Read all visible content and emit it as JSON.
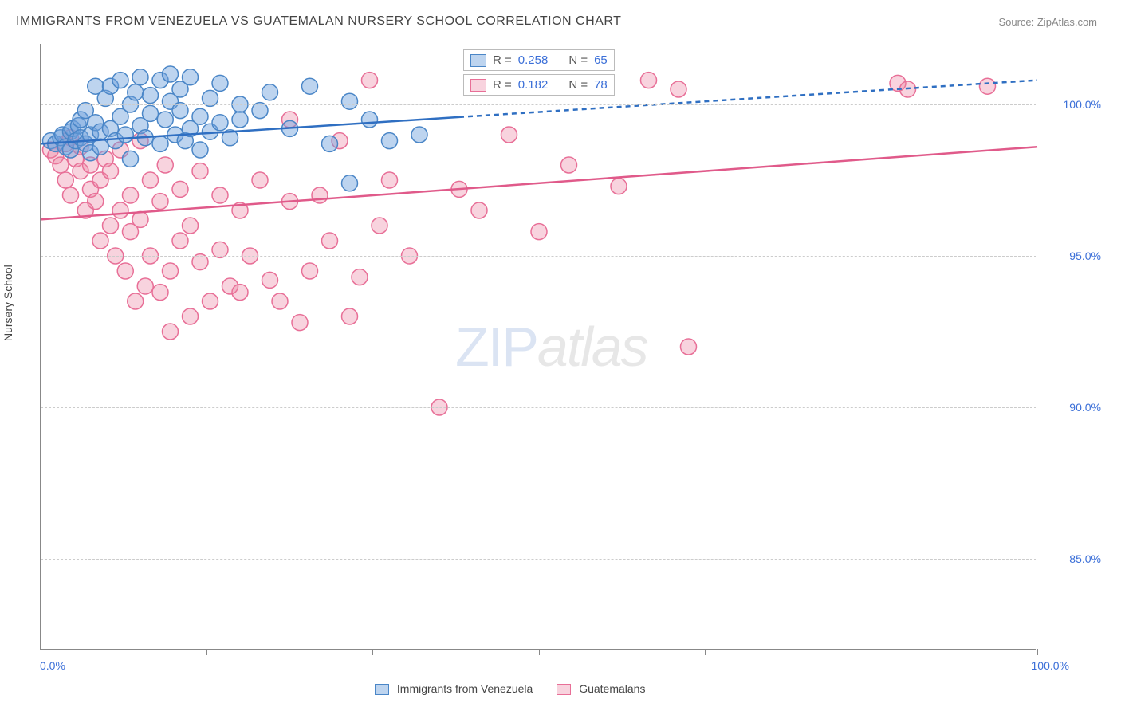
{
  "title": "IMMIGRANTS FROM VENEZUELA VS GUATEMALAN NURSERY SCHOOL CORRELATION CHART",
  "source": "Source: ZipAtlas.com",
  "ylabel": "Nursery School",
  "watermark_zip": "ZIP",
  "watermark_atlas": "atlas",
  "colors": {
    "series_a_fill": "rgba(108,160,220,0.45)",
    "series_a_stroke": "#4a86c7",
    "series_b_fill": "rgba(235,130,160,0.35)",
    "series_b_stroke": "#e86f97",
    "trend_a": "#2f6fc2",
    "trend_b": "#e05a8a",
    "axis_tick_label": "#3b6fd8",
    "grid": "#cccccc",
    "axis": "#888888",
    "text": "#444444"
  },
  "chart": {
    "type": "scatter",
    "xlim": [
      0,
      100
    ],
    "ylim": [
      82,
      102
    ],
    "yticks": [
      85,
      90,
      95,
      100
    ],
    "ytick_labels": [
      "85.0%",
      "90.0%",
      "95.0%",
      "100.0%"
    ],
    "xticks": [
      0,
      16.6,
      33.3,
      50,
      66.6,
      83.3,
      100
    ],
    "xlim_labels": {
      "min": "0.0%",
      "max": "100.0%"
    },
    "marker_radius": 10,
    "marker_stroke_width": 1.5,
    "trend_width": 2.5
  },
  "stats": {
    "a": {
      "R_label": "R =",
      "R": "0.258",
      "N_label": "N =",
      "N": "65"
    },
    "b": {
      "R_label": "R =",
      "R": "0.182",
      "N_label": "N =",
      "N": "78"
    }
  },
  "legend": {
    "a": "Immigrants from Venezuela",
    "b": "Guatemalans"
  },
  "trend_lines": {
    "a": {
      "x1": 0,
      "y1": 98.7,
      "x2": 100,
      "y2": 100.8
    },
    "b": {
      "x1": 0,
      "y1": 96.2,
      "x2": 100,
      "y2": 98.6
    }
  },
  "series_a": [
    [
      1,
      98.8
    ],
    [
      1.5,
      98.7
    ],
    [
      2,
      98.9
    ],
    [
      2.2,
      99.0
    ],
    [
      2.5,
      98.6
    ],
    [
      3,
      99.1
    ],
    [
      3,
      98.5
    ],
    [
      3.2,
      99.2
    ],
    [
      3.5,
      98.8
    ],
    [
      3.8,
      99.3
    ],
    [
      4,
      98.9
    ],
    [
      4,
      99.5
    ],
    [
      4.5,
      98.7
    ],
    [
      4.5,
      99.8
    ],
    [
      5,
      99.0
    ],
    [
      5,
      98.4
    ],
    [
      5.5,
      99.4
    ],
    [
      5.5,
      100.6
    ],
    [
      6,
      99.1
    ],
    [
      6,
      98.6
    ],
    [
      6.5,
      100.2
    ],
    [
      7,
      99.2
    ],
    [
      7,
      100.6
    ],
    [
      7.5,
      98.8
    ],
    [
      8,
      99.6
    ],
    [
      8,
      100.8
    ],
    [
      8.5,
      99.0
    ],
    [
      9,
      100.0
    ],
    [
      9,
      98.2
    ],
    [
      9.5,
      100.4
    ],
    [
      10,
      99.3
    ],
    [
      10,
      100.9
    ],
    [
      10.5,
      98.9
    ],
    [
      11,
      99.7
    ],
    [
      11,
      100.3
    ],
    [
      12,
      100.8
    ],
    [
      12,
      98.7
    ],
    [
      12.5,
      99.5
    ],
    [
      13,
      100.1
    ],
    [
      13,
      101.0
    ],
    [
      13.5,
      99.0
    ],
    [
      14,
      99.8
    ],
    [
      14,
      100.5
    ],
    [
      14.5,
      98.8
    ],
    [
      15,
      99.2
    ],
    [
      15,
      100.9
    ],
    [
      16,
      99.6
    ],
    [
      16,
      98.5
    ],
    [
      17,
      100.2
    ],
    [
      17,
      99.1
    ],
    [
      18,
      100.7
    ],
    [
      18,
      99.4
    ],
    [
      19,
      98.9
    ],
    [
      20,
      100.0
    ],
    [
      20,
      99.5
    ],
    [
      22,
      99.8
    ],
    [
      23,
      100.4
    ],
    [
      25,
      99.2
    ],
    [
      27,
      100.6
    ],
    [
      29,
      98.7
    ],
    [
      31,
      100.1
    ],
    [
      33,
      99.5
    ],
    [
      35,
      98.8
    ],
    [
      38,
      99.0
    ],
    [
      31,
      97.4
    ]
  ],
  "series_b": [
    [
      1,
      98.5
    ],
    [
      1.5,
      98.3
    ],
    [
      2,
      98.0
    ],
    [
      2.5,
      98.7
    ],
    [
      2.5,
      97.5
    ],
    [
      3,
      98.9
    ],
    [
      3,
      97.0
    ],
    [
      3.5,
      98.2
    ],
    [
      4,
      97.8
    ],
    [
      4,
      98.6
    ],
    [
      4.5,
      96.5
    ],
    [
      5,
      97.2
    ],
    [
      5,
      98.0
    ],
    [
      5.5,
      96.8
    ],
    [
      6,
      97.5
    ],
    [
      6,
      95.5
    ],
    [
      6.5,
      98.2
    ],
    [
      7,
      96.0
    ],
    [
      7,
      97.8
    ],
    [
      7.5,
      95.0
    ],
    [
      8,
      96.5
    ],
    [
      8,
      98.5
    ],
    [
      8.5,
      94.5
    ],
    [
      9,
      97.0
    ],
    [
      9,
      95.8
    ],
    [
      9.5,
      93.5
    ],
    [
      10,
      96.2
    ],
    [
      10,
      98.8
    ],
    [
      10.5,
      94.0
    ],
    [
      11,
      97.5
    ],
    [
      11,
      95.0
    ],
    [
      12,
      93.8
    ],
    [
      12,
      96.8
    ],
    [
      12.5,
      98.0
    ],
    [
      13,
      94.5
    ],
    [
      13,
      92.5
    ],
    [
      14,
      97.2
    ],
    [
      14,
      95.5
    ],
    [
      15,
      93.0
    ],
    [
      15,
      96.0
    ],
    [
      16,
      94.8
    ],
    [
      16,
      97.8
    ],
    [
      17,
      93.5
    ],
    [
      18,
      95.2
    ],
    [
      18,
      97.0
    ],
    [
      19,
      94.0
    ],
    [
      20,
      96.5
    ],
    [
      20,
      93.8
    ],
    [
      21,
      95.0
    ],
    [
      22,
      97.5
    ],
    [
      23,
      94.2
    ],
    [
      24,
      93.5
    ],
    [
      25,
      96.8
    ],
    [
      25,
      99.5
    ],
    [
      26,
      92.8
    ],
    [
      27,
      94.5
    ],
    [
      28,
      97.0
    ],
    [
      29,
      95.5
    ],
    [
      30,
      98.8
    ],
    [
      31,
      93.0
    ],
    [
      32,
      94.3
    ],
    [
      33,
      100.8
    ],
    [
      34,
      96.0
    ],
    [
      35,
      97.5
    ],
    [
      37,
      95.0
    ],
    [
      40,
      90.0
    ],
    [
      42,
      97.2
    ],
    [
      44,
      96.5
    ],
    [
      47,
      99.0
    ],
    [
      50,
      95.8
    ],
    [
      53,
      98.0
    ],
    [
      58,
      97.3
    ],
    [
      61,
      100.8
    ],
    [
      64,
      100.5
    ],
    [
      65,
      92.0
    ],
    [
      86,
      100.7
    ],
    [
      87,
      100.5
    ],
    [
      95,
      100.6
    ]
  ]
}
